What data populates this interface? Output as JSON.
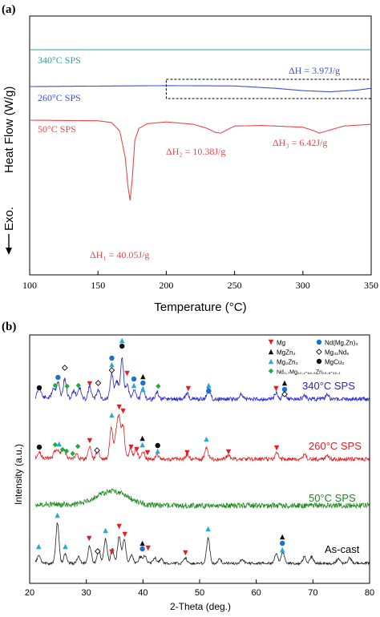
{
  "chart_data": [
    {
      "panel_label": "(a)",
      "type": "line",
      "xlabel": "Temperature (°C)",
      "ylabel": "Heat Flow (W/g)",
      "exo_label": "Exo.",
      "xlim": [
        100,
        350
      ],
      "xticks": [
        "100",
        "150",
        "200",
        "250",
        "300",
        "350"
      ],
      "series": [
        {
          "name": "340°C SPS",
          "color": "#2aa198",
          "x": [
            100,
            350
          ],
          "y": [
            0.0,
            0.0
          ]
        },
        {
          "name": "260°C SPS",
          "color": "#3a4fe0",
          "x": [
            100,
            200,
            250,
            280,
            300,
            320,
            340,
            350
          ],
          "y": [
            -2.3,
            -2.15,
            -2.2,
            -2.6,
            -3.0,
            -3.2,
            -2.9,
            -2.6
          ]
        },
        {
          "name": "50°C SPS",
          "color": "#e8484a",
          "x": [
            100,
            150,
            160,
            166,
            170,
            172,
            173.5,
            175,
            177,
            180,
            186,
            200,
            220,
            230,
            236,
            240,
            244,
            250,
            270,
            300,
            308,
            312,
            318,
            330,
            350
          ],
          "y": [
            -6.6,
            -6.7,
            -7.0,
            -8.5,
            -13,
            -18,
            -20.3,
            -17,
            -10,
            -8.0,
            -7.2,
            -6.9,
            -7.3,
            -8.0,
            -8.7,
            -8.8,
            -8.3,
            -7.6,
            -7.5,
            -7.8,
            -8.4,
            -8.8,
            -8.4,
            -7.6,
            -7.3
          ]
        }
      ],
      "annotations": [
        {
          "text": "ΔH = 3.97J/g",
          "color": "#3a4fe0"
        },
        {
          "text": "ΔH₂ = 10.38J/g",
          "color": "#e8484a"
        },
        {
          "text": "ΔH₃ = 6.42J/g",
          "color": "#e8484a"
        },
        {
          "text": "ΔH₁ = 40.05J/g",
          "color": "#e8484a"
        }
      ],
      "dashed_box_x": [
        200,
        350
      ]
    },
    {
      "panel_label": "(b)",
      "type": "line",
      "xlabel": "2-Theta (deg.)",
      "ylabel": "Intensity (a.u.)",
      "xlim": [
        20,
        80
      ],
      "xticks": [
        "20",
        "30",
        "40",
        "50",
        "60",
        "70",
        "80"
      ],
      "series": [
        {
          "name": "340°C SPS",
          "color": "#2424cc"
        },
        {
          "name": "260°C SPS",
          "color": "#e02020"
        },
        {
          "name": "50°C SPS",
          "color": "#1a8a1a"
        },
        {
          "name": "As-cast",
          "color": "#202020"
        }
      ],
      "legend": {
        "placement": "top-right",
        "items": [
          {
            "label": "Mg",
            "marker": "triangle-down",
            "color": "#e02020"
          },
          {
            "label": "Nd(Mg,Zn)₃",
            "marker": "circle",
            "color": "#1e6fd0"
          },
          {
            "label": "MgZn₂",
            "marker": "triangle-up",
            "color": "#111111"
          },
          {
            "label": "Mg₄₁Nd₅",
            "marker": "diamond-open",
            "color": "#111111"
          },
          {
            "label": "Mg₂Zn₃",
            "marker": "triangle-up",
            "color": "#22aadd"
          },
          {
            "label": "MgCu₂",
            "marker": "circle",
            "color": "#111111"
          },
          {
            "label": "Nd₃.₇Mg₅₂.₂-₆₆.₅Zn₂₅.₈-₄₀.₁",
            "marker": "diamond",
            "color": "#22aa44"
          }
        ]
      },
      "peaks": {
        "340": [
          {
            "x": 21.7,
            "h": 14
          },
          {
            "x": 24.2,
            "h": 12
          },
          {
            "x": 25.0,
            "h": 20
          },
          {
            "x": 26.2,
            "h": 24
          },
          {
            "x": 27.8,
            "h": 10
          },
          {
            "x": 28.8,
            "h": 14
          },
          {
            "x": 30.6,
            "h": 16
          },
          {
            "x": 32.1,
            "h": 12
          },
          {
            "x": 34.5,
            "h": 32
          },
          {
            "x": 35.4,
            "h": 22
          },
          {
            "x": 36.3,
            "h": 50
          },
          {
            "x": 37.2,
            "h": 18
          },
          {
            "x": 38.5,
            "h": 12
          },
          {
            "x": 40.0,
            "h": 14
          },
          {
            "x": 42.5,
            "h": 8
          },
          {
            "x": 47.8,
            "h": 7
          },
          {
            "x": 51.6,
            "h": 15
          },
          {
            "x": 57.3,
            "h": 6
          },
          {
            "x": 63.5,
            "h": 8
          },
          {
            "x": 65.0,
            "h": 9
          },
          {
            "x": 68.5,
            "h": 5
          },
          {
            "x": 72.5,
            "h": 5
          }
        ],
        "260": [
          {
            "x": 21.7,
            "h": 6
          },
          {
            "x": 24.5,
            "h": 8
          },
          {
            "x": 25.0,
            "h": 8
          },
          {
            "x": 25.8,
            "h": 10
          },
          {
            "x": 26.3,
            "h": 6
          },
          {
            "x": 28.3,
            "h": 6
          },
          {
            "x": 30.6,
            "h": 16
          },
          {
            "x": 32.0,
            "h": 10
          },
          {
            "x": 34.4,
            "h": 38
          },
          {
            "x": 35.3,
            "h": 30
          },
          {
            "x": 35.8,
            "h": 46
          },
          {
            "x": 36.5,
            "h": 40
          },
          {
            "x": 37.8,
            "h": 14
          },
          {
            "x": 38.8,
            "h": 12
          },
          {
            "x": 40.0,
            "h": 10
          },
          {
            "x": 42.5,
            "h": 6
          },
          {
            "x": 47.8,
            "h": 6
          },
          {
            "x": 51.2,
            "h": 14
          },
          {
            "x": 55.0,
            "h": 5
          },
          {
            "x": 63.6,
            "h": 8
          },
          {
            "x": 68.5,
            "h": 5
          },
          {
            "x": 72.5,
            "h": 5
          }
        ],
        "50": [
          {
            "x": 34.5,
            "h": 18,
            "w": 2.8
          }
        ],
        "ascast": [
          {
            "x": 21.6,
            "h": 10
          },
          {
            "x": 24.9,
            "h": 50
          },
          {
            "x": 26.3,
            "h": 12
          },
          {
            "x": 28.6,
            "h": 8
          },
          {
            "x": 30.6,
            "h": 22
          },
          {
            "x": 32.2,
            "h": 16
          },
          {
            "x": 33.4,
            "h": 30
          },
          {
            "x": 34.6,
            "h": 18
          },
          {
            "x": 35.8,
            "h": 34
          },
          {
            "x": 36.7,
            "h": 30
          },
          {
            "x": 38.0,
            "h": 10
          },
          {
            "x": 39.5,
            "h": 8
          },
          {
            "x": 40.3,
            "h": 10
          },
          {
            "x": 42.1,
            "h": 7
          },
          {
            "x": 43.2,
            "h": 6
          },
          {
            "x": 47.5,
            "h": 6
          },
          {
            "x": 51.5,
            "h": 32
          },
          {
            "x": 53.5,
            "h": 5
          },
          {
            "x": 57.5,
            "h": 5
          },
          {
            "x": 63.5,
            "h": 12
          },
          {
            "x": 64.7,
            "h": 14
          },
          {
            "x": 68.5,
            "h": 8
          },
          {
            "x": 69.8,
            "h": 8
          },
          {
            "x": 74.5,
            "h": 6
          },
          {
            "x": 76.5,
            "h": 7
          }
        ]
      }
    }
  ]
}
